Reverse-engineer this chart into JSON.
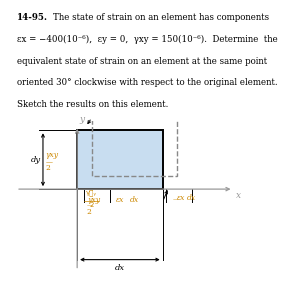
{
  "title_line1": "14-95.   The state of strain on an element has components",
  "title_line2": "εx = −400(10⁻⁶),  εy = 0,  γxy = 150(10⁻⁶).  Determine  the",
  "title_line3": "equivalent state of strain on an element at the same point",
  "title_line4": "oriented 30° clockwise with respect to the original element.",
  "title_line5": "Sketch the results on this element.",
  "bg_color": "#ffffff",
  "box_fill": "#c8ddf0",
  "box_edge": "#000000",
  "axis_color": "#999999",
  "dashed_color": "#888888",
  "orange": "#cc8800",
  "black": "#000000"
}
